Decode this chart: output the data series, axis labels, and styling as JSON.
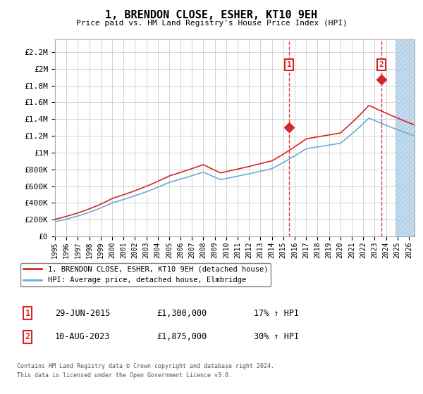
{
  "title": "1, BRENDON CLOSE, ESHER, KT10 9EH",
  "subtitle": "Price paid vs. HM Land Registry's House Price Index (HPI)",
  "ylabel_ticks": [
    "£0",
    "£200K",
    "£400K",
    "£600K",
    "£800K",
    "£1M",
    "£1.2M",
    "£1.4M",
    "£1.6M",
    "£1.8M",
    "£2M",
    "£2.2M"
  ],
  "ytick_vals": [
    0,
    200000,
    400000,
    600000,
    800000,
    1000000,
    1200000,
    1400000,
    1600000,
    1800000,
    2000000,
    2200000
  ],
  "ylim": [
    0,
    2350000
  ],
  "xlim_start": 1995.0,
  "xlim_end": 2026.5,
  "hpi_color": "#6baed6",
  "price_color": "#d62728",
  "sale1_date": "29-JUN-2015",
  "sale1_price": "£1,300,000",
  "sale1_price_val": 1300000,
  "sale1_label": "1",
  "sale1_pct": "17% ↑ HPI",
  "sale1_x": 2015.5,
  "sale2_date": "10-AUG-2023",
  "sale2_price": "£1,875,000",
  "sale2_price_val": 1875000,
  "sale2_label": "2",
  "sale2_pct": "30% ↑ HPI",
  "sale2_x": 2023.6,
  "legend_line1": "1, BRENDON CLOSE, ESHER, KT10 9EH (detached house)",
  "legend_line2": "HPI: Average price, detached house, Elmbridge",
  "footnote1": "Contains HM Land Registry data © Crown copyright and database right 2024.",
  "footnote2": "This data is licensed under the Open Government Licence v3.0.",
  "hatch_color": "#c6dbef",
  "background_color": "#ffffff",
  "grid_color": "#cccccc",
  "xticks": [
    1995,
    1996,
    1997,
    1998,
    1999,
    2000,
    2001,
    2002,
    2003,
    2004,
    2005,
    2006,
    2007,
    2008,
    2009,
    2010,
    2011,
    2012,
    2013,
    2014,
    2015,
    2016,
    2017,
    2018,
    2019,
    2020,
    2021,
    2022,
    2023,
    2024,
    2025,
    2026
  ],
  "future_x": 2024.83
}
